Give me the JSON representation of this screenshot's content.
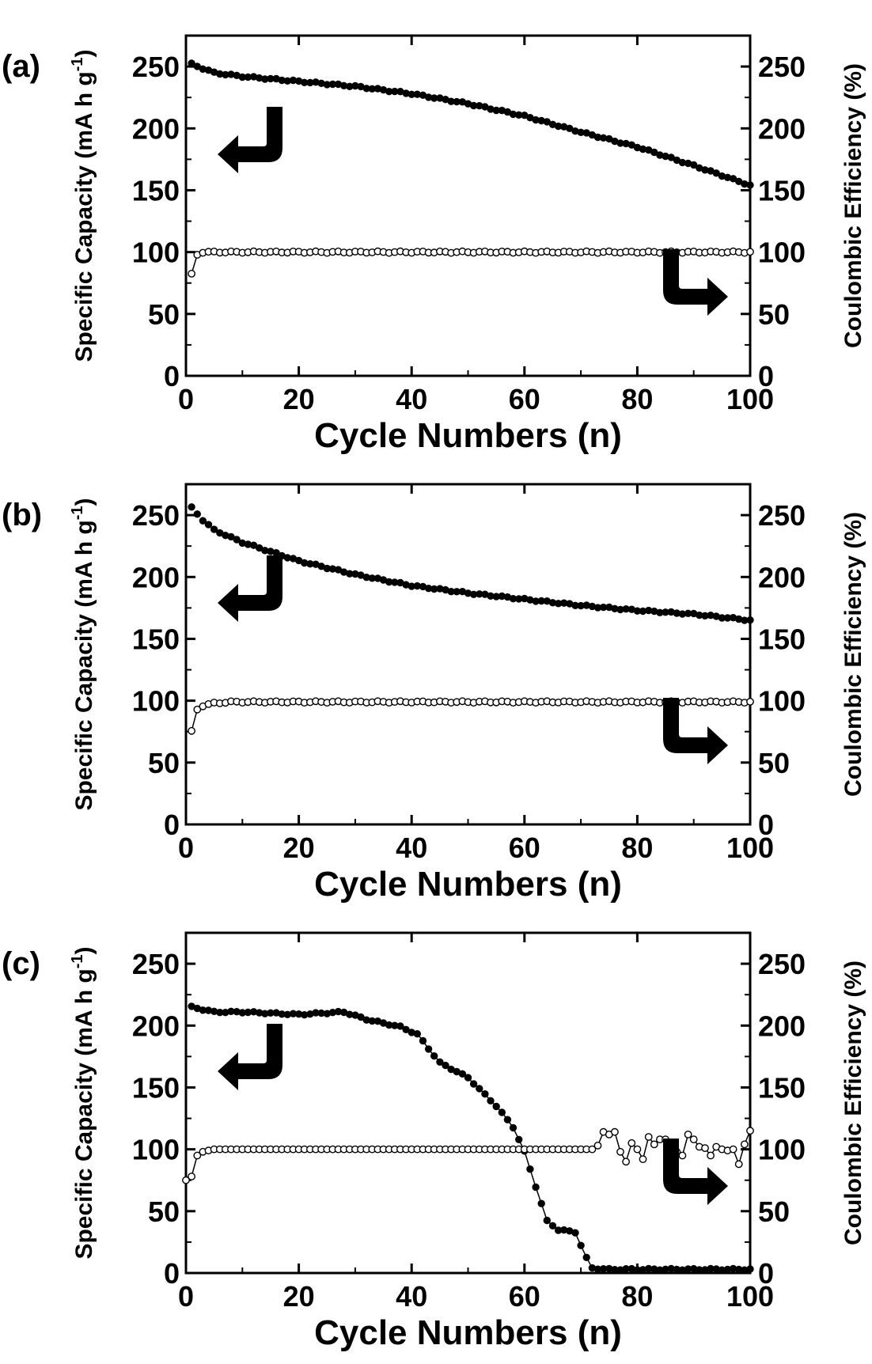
{
  "chart_data": [
    {
      "type": "scatter",
      "panel_label": "(a)",
      "xlabel": "Cycle Numbers (n)",
      "ylabel": "Specific Capacity (mA h g-1)",
      "ylabel_parts": {
        "main": "Specific Capacity (mA h g",
        "sup": "-1",
        "end": ")"
      },
      "y2label": "Coulombic Efficiency (%)",
      "xlim": [
        0,
        100
      ],
      "ylim": [
        0,
        275
      ],
      "y2lim": [
        0,
        275
      ],
      "xticks": [
        "0",
        "20",
        "40",
        "60",
        "80",
        "100"
      ],
      "yticks": [
        "0",
        "50",
        "100",
        "150",
        "200",
        "250"
      ],
      "grid": false,
      "series": [
        {
          "axis": "left",
          "marker": "filled-circle",
          "line": false,
          "anchors": [
            [
              1,
              252
            ],
            [
              5,
              245
            ],
            [
              10,
              242
            ],
            [
              20,
              238
            ],
            [
              30,
              234
            ],
            [
              40,
              228
            ],
            [
              50,
              220
            ],
            [
              60,
              210
            ],
            [
              70,
              197
            ],
            [
              80,
              185
            ],
            [
              90,
              170
            ],
            [
              100,
              154
            ]
          ]
        },
        {
          "axis": "right",
          "marker": "open-circle",
          "line": true,
          "anchors": [
            [
              1,
              82
            ],
            [
              2,
              98
            ],
            [
              3,
              100
            ],
            [
              100,
              100
            ]
          ]
        }
      ],
      "annotations": [
        "left-arrow: capacity on left axis",
        "right-arrow: efficiency on right axis"
      ]
    },
    {
      "type": "scatter",
      "panel_label": "(b)",
      "xlabel": "Cycle Numbers (n)",
      "ylabel": "Specific Capacity (mA h g-1)",
      "ylabel_parts": {
        "main": "Specific Capacity (mA h g",
        "sup": "-1",
        "end": ")"
      },
      "y2label": "Coulombic Efficiency (%)",
      "xlim": [
        0,
        100
      ],
      "ylim": [
        0,
        275
      ],
      "y2lim": [
        0,
        275
      ],
      "xticks": [
        "0",
        "20",
        "40",
        "60",
        "80",
        "100"
      ],
      "yticks": [
        "0",
        "50",
        "100",
        "150",
        "200",
        "250"
      ],
      "grid": false,
      "series": [
        {
          "axis": "left",
          "marker": "filled-circle",
          "line": false,
          "anchors": [
            [
              1,
              256
            ],
            [
              3,
              246
            ],
            [
              5,
              238
            ],
            [
              10,
              228
            ],
            [
              20,
              213
            ],
            [
              30,
              202
            ],
            [
              40,
              193
            ],
            [
              50,
              187
            ],
            [
              60,
              182
            ],
            [
              70,
              177
            ],
            [
              80,
              173
            ],
            [
              90,
              170
            ],
            [
              100,
              165
            ]
          ]
        },
        {
          "axis": "right",
          "marker": "open-circle",
          "line": true,
          "anchors": [
            [
              1,
              75
            ],
            [
              2,
              93
            ],
            [
              3,
              96
            ],
            [
              5,
              98
            ],
            [
              8,
              99
            ],
            [
              100,
              99
            ]
          ]
        }
      ],
      "annotations": [
        "left-arrow: capacity on left axis",
        "right-arrow: efficiency on right axis"
      ]
    },
    {
      "type": "scatter",
      "panel_label": "(c)",
      "xlabel": "Cycle Numbers (n)",
      "ylabel": "Specific Capacity (mA h g-1)",
      "ylabel_parts": {
        "main": "Specific Capacity (mA h g",
        "sup": "-1",
        "end": ")"
      },
      "y2label": "Coulombic Efficiency (%)",
      "xlim": [
        0,
        100
      ],
      "ylim": [
        0,
        275
      ],
      "y2lim": [
        0,
        275
      ],
      "xticks": [
        "0",
        "20",
        "40",
        "60",
        "80",
        "100"
      ],
      "yticks": [
        "0",
        "50",
        "100",
        "150",
        "200",
        "250"
      ],
      "grid": false,
      "series": [
        {
          "axis": "left",
          "marker": "filled-circle",
          "line": true,
          "anchors": [
            [
              1,
              215
            ],
            [
              5,
              211
            ],
            [
              10,
              211
            ],
            [
              20,
              209
            ],
            [
              28,
              211
            ],
            [
              32,
              205
            ],
            [
              38,
              199
            ],
            [
              41,
              193
            ],
            [
              45,
              170
            ],
            [
              50,
              158
            ],
            [
              55,
              135
            ],
            [
              58,
              118
            ],
            [
              60,
              98
            ],
            [
              62,
              70
            ],
            [
              64,
              42
            ],
            [
              66,
              35
            ],
            [
              69,
              33
            ],
            [
              71,
              12
            ],
            [
              72,
              4
            ],
            [
              75,
              3
            ],
            [
              100,
              3
            ]
          ]
        },
        {
          "axis": "right",
          "marker": "open-circle",
          "line": true,
          "values": {
            "0": 75,
            "1": 78,
            "2": 95,
            "3": 98,
            "4": 99,
            "72": 100,
            "73": 103,
            "74": 114,
            "75": 112,
            "76": 114,
            "77": 98,
            "78": 90,
            "79": 105,
            "80": 100,
            "81": 92,
            "82": 110,
            "83": 104,
            "84": 108,
            "85": 108,
            "86": 85,
            "87": 98,
            "88": 95,
            "89": 112,
            "90": 108,
            "91": 102,
            "92": 101,
            "93": 95,
            "94": 102,
            "95": 100,
            "96": 99,
            "97": 100,
            "98": 88,
            "99": 104,
            "100": 115
          },
          "default_value": 100
        }
      ],
      "annotations": [
        "left-arrow: capacity on left axis",
        "right-arrow: efficiency on right axis"
      ]
    }
  ]
}
